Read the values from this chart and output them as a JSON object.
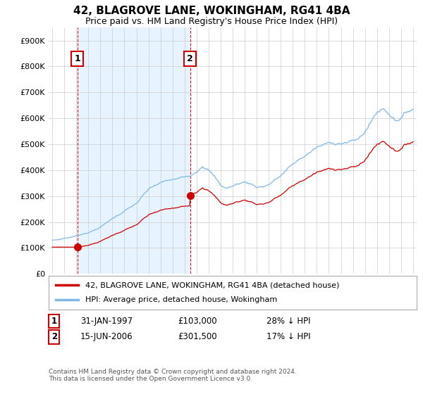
{
  "title": "42, BLAGROVE LANE, WOKINGHAM, RG41 4BA",
  "subtitle": "Price paid vs. HM Land Registry's House Price Index (HPI)",
  "footer": "Contains HM Land Registry data © Crown copyright and database right 2024.\nThis data is licensed under the Open Government Licence v3.0.",
  "legend_line1": "42, BLAGROVE LANE, WOKINGHAM, RG41 4BA (detached house)",
  "legend_line2": "HPI: Average price, detached house, Wokingham",
  "transaction1_label": "1",
  "transaction1_date": "31-JAN-1997",
  "transaction1_price": "£103,000",
  "transaction1_hpi": "28% ↓ HPI",
  "transaction1_year": 1997.08,
  "transaction1_value": 103000,
  "transaction2_label": "2",
  "transaction2_date": "15-JUN-2006",
  "transaction2_price": "£301,500",
  "transaction2_hpi": "17% ↓ HPI",
  "transaction2_year": 2006.46,
  "transaction2_value": 301500,
  "hpi_color": "#7EB8E8",
  "price_color": "#CC0000",
  "vline_color": "#CC0000",
  "shade_color": "#DDEEFF",
  "background_color": "#FFFFFF",
  "grid_color": "#CCCCCC",
  "ylim": [
    0,
    950000
  ],
  "xlim_start": 1994.7,
  "xlim_end": 2025.3,
  "yticks": [
    0,
    100000,
    200000,
    300000,
    400000,
    500000,
    600000,
    700000,
    800000,
    900000
  ],
  "ytick_labels": [
    "£0",
    "£100K",
    "£200K",
    "£300K",
    "£400K",
    "£500K",
    "£600K",
    "£700K",
    "£800K",
    "£900K"
  ],
  "xticks": [
    1995,
    1996,
    1997,
    1998,
    1999,
    2000,
    2001,
    2002,
    2003,
    2004,
    2005,
    2006,
    2007,
    2008,
    2009,
    2010,
    2011,
    2012,
    2013,
    2014,
    2015,
    2016,
    2017,
    2018,
    2019,
    2020,
    2021,
    2022,
    2023,
    2024,
    2025
  ]
}
